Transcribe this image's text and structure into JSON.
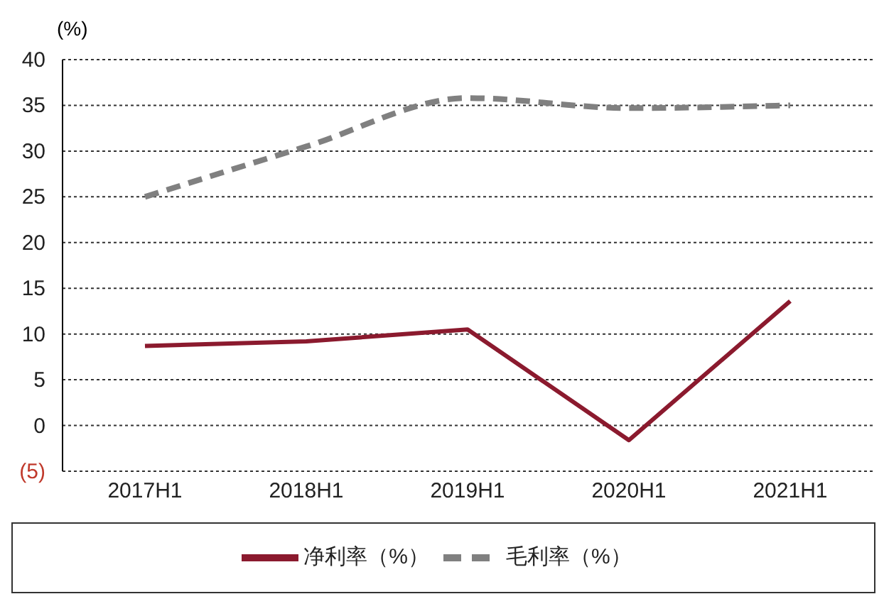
{
  "chart_data": {
    "type": "line",
    "ylabel": "(%)",
    "categories": [
      "2017H1",
      "2018H1",
      "2019H1",
      "2020H1",
      "2021H1"
    ],
    "series": [
      {
        "name": "净利率（%）",
        "color": "#8b1a2e",
        "line_style": "solid",
        "values": [
          8.7,
          9.2,
          10.5,
          -1.6,
          13.6
        ]
      },
      {
        "name": "毛利率（%）",
        "color": "#808080",
        "line_style": "dashed",
        "values": [
          25,
          30.5,
          35.8,
          34.7,
          35
        ]
      }
    ],
    "ylim": [
      -5,
      40
    ],
    "yticks": [
      {
        "value": -5,
        "label": "(5)"
      },
      0,
      5,
      10,
      15,
      20,
      25,
      30,
      35,
      40
    ],
    "grid": "y",
    "legend": "bottom",
    "marker": "none"
  }
}
